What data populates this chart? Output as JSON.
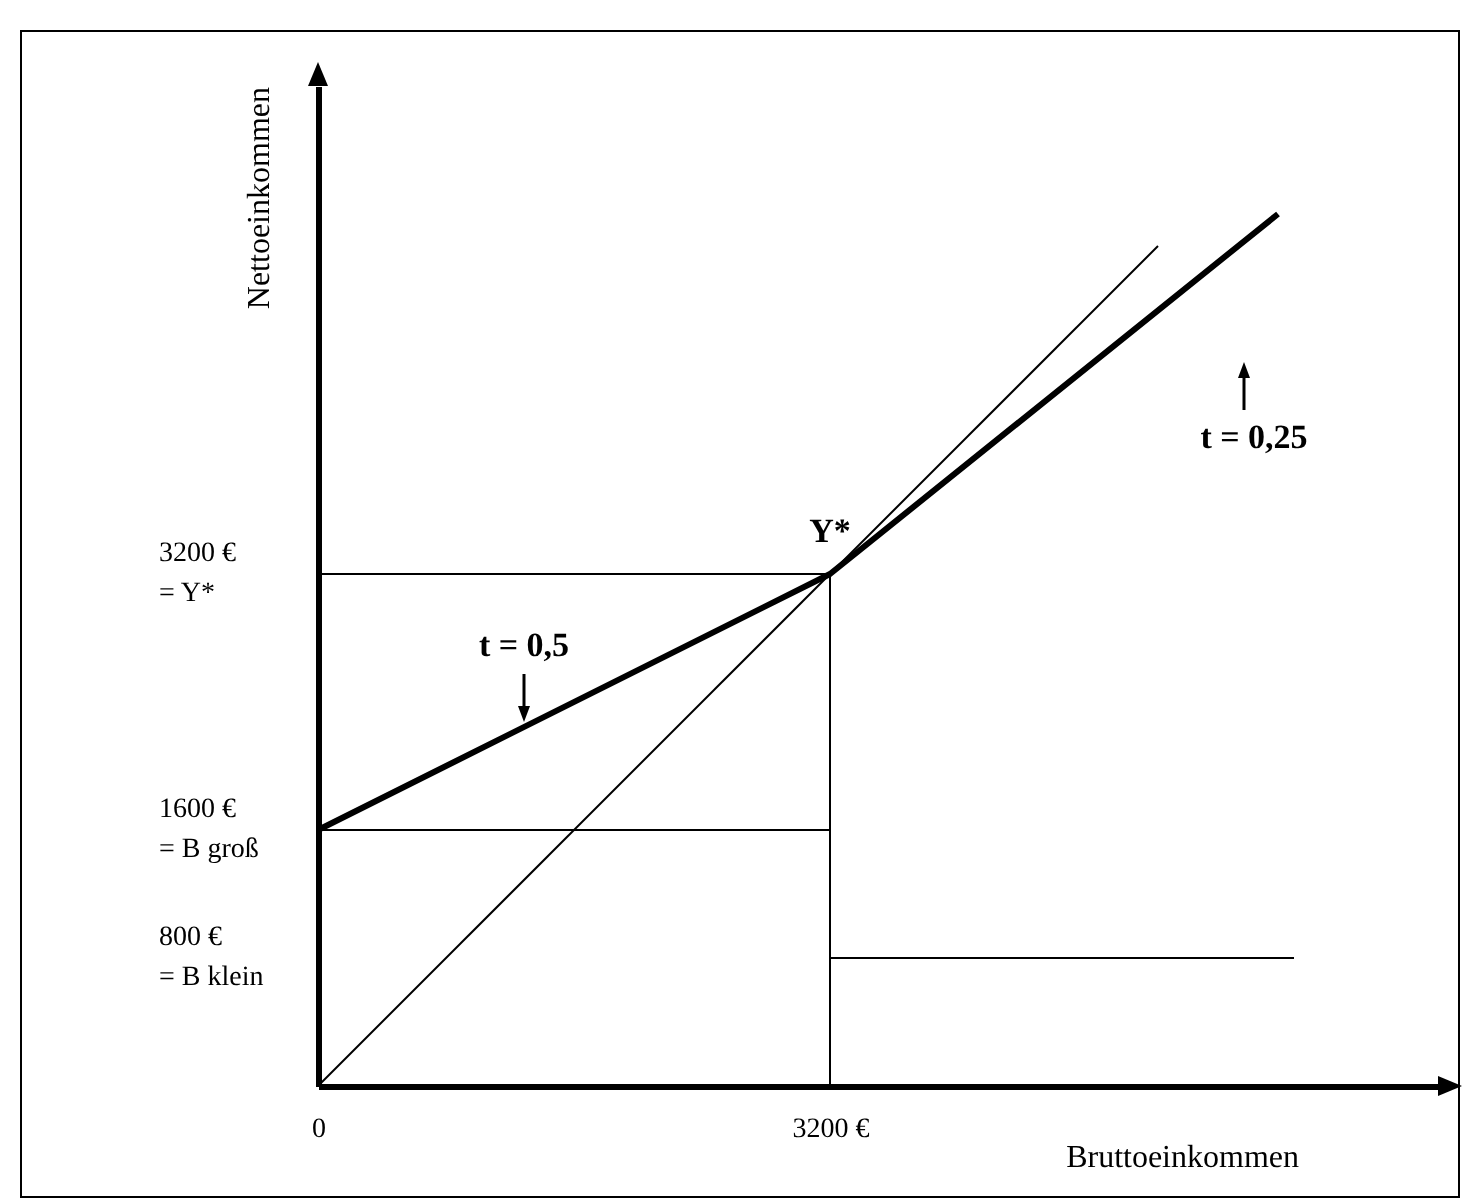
{
  "chart_data": {
    "type": "line",
    "xlabel": "Bruttoeinkommen",
    "ylabel": "Nettoeinkommen",
    "series": [
      {
        "color": "#000000",
        "x": [
          0,
          3200,
          6000
        ],
        "values": [
          1600,
          3200,
          5450
        ]
      },
      {
        "color": "#000000",
        "x": [
          0,
          5250
        ],
        "values": [
          0,
          5250
        ]
      },
      {
        "color": "#000000",
        "x": [
          0,
          3200
        ],
        "values": [
          3200,
          3200
        ]
      },
      {
        "color": "#000000",
        "x": [
          3200,
          3200
        ],
        "values": [
          0,
          3200
        ]
      },
      {
        "color": "#000000",
        "x": [
          0,
          3200
        ],
        "values": [
          1600,
          1600
        ]
      },
      {
        "color": "#000000",
        "x": [
          3200,
          6100
        ],
        "values": [
          800,
          800
        ]
      }
    ],
    "xlim": [
      0,
      7000
    ],
    "ylim": [
      0,
      6250
    ],
    "xticks": [
      {
        "value": 0,
        "label": "0"
      },
      {
        "value": 3200,
        "label": "3200 €"
      }
    ],
    "yticks": [
      {
        "value": 800,
        "label": "800 €\n= B klein"
      },
      {
        "value": 1600,
        "label": "1600 €\n= B groß"
      },
      {
        "value": 3200,
        "label": "3200 €\n= Y*"
      }
    ],
    "annotations": [
      {
        "text": "Y*",
        "x": 3200,
        "y": 3200
      },
      "t = 0,5",
      "t = 0,25"
    ],
    "grid": false,
    "legend": false,
    "marker": "none",
    "line_style": "solid"
  }
}
